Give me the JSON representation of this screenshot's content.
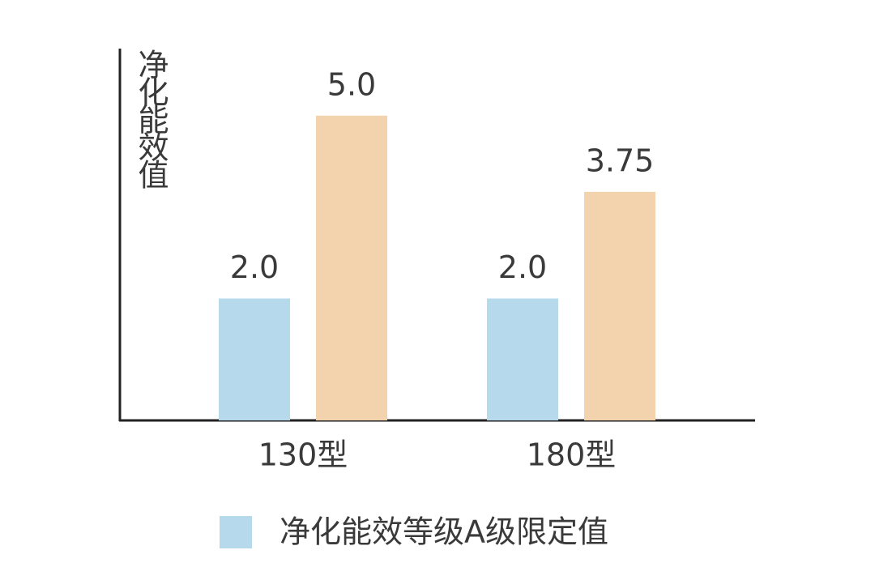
{
  "chart_data": {
    "type": "bar",
    "y_label": "净化能效值",
    "categories": [
      "130型",
      "180型"
    ],
    "series": [
      {
        "name": "净化能效等级A级限定值",
        "color": "#b7d9ec",
        "values": [
          2,
          2
        ],
        "value_labels": [
          "2.0",
          "2.0"
        ]
      },
      {
        "color": "#f2d3ad",
        "values": [
          5,
          3.75
        ],
        "value_labels": [
          "5.0",
          "3.75"
        ]
      }
    ],
    "ylim": [
      0,
      6.1
    ]
  }
}
